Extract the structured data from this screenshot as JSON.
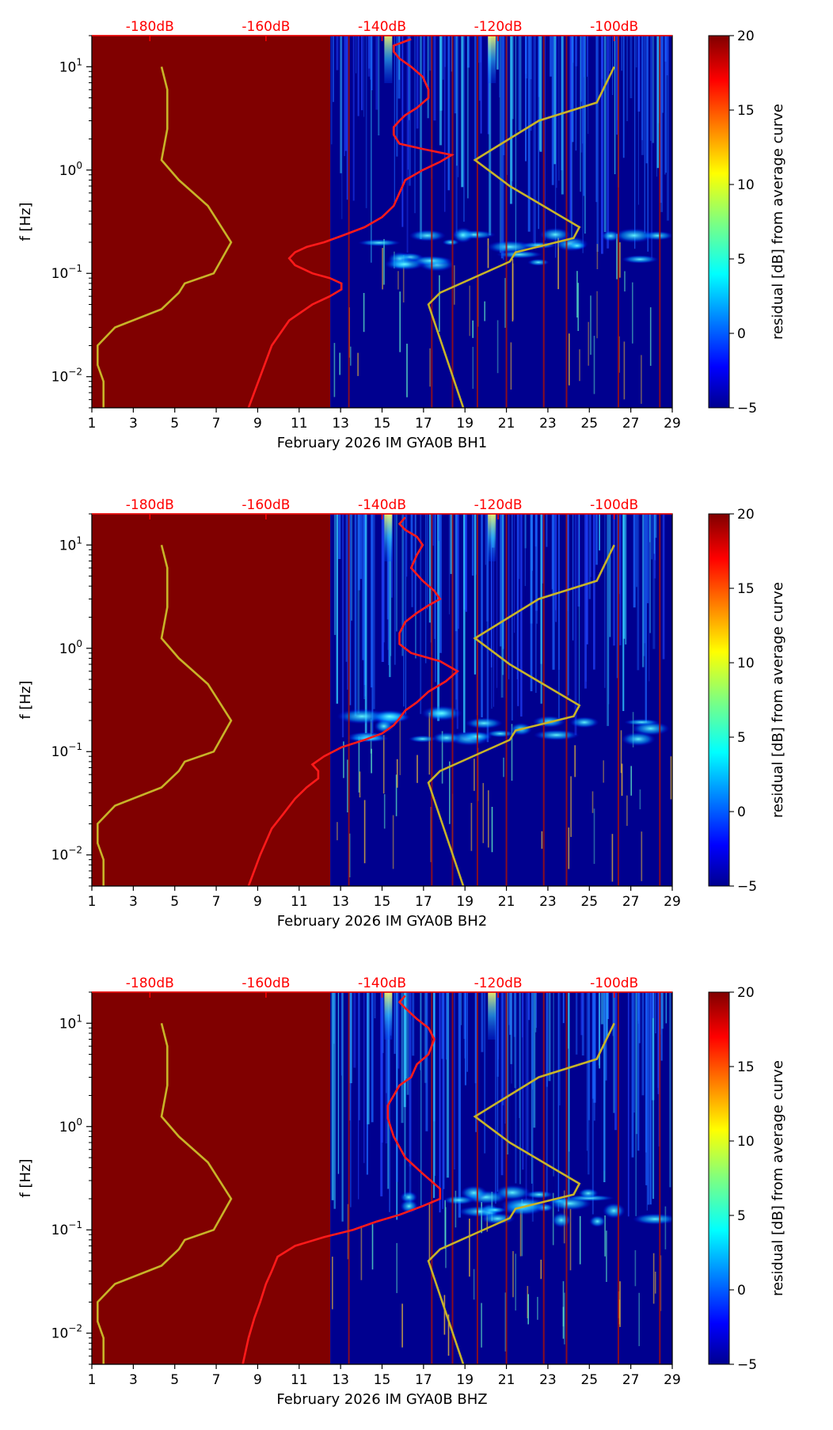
{
  "chart_data": [
    {
      "type": "heatmap",
      "title": "",
      "xlabel": "February 2026 IM GYA0B  BH1",
      "ylabel": "f [Hz]",
      "xlim": [
        1,
        29
      ],
      "xticks": [
        "1",
        "3",
        "5",
        "7",
        "9",
        "11",
        "13",
        "15",
        "17",
        "19",
        "21",
        "23",
        "25",
        "27",
        "29"
      ],
      "yscale": "log",
      "ylim": [
        0.005,
        20
      ],
      "yticks": [
        {
          "v": 0.01,
          "base": "10",
          "exp": "−2"
        },
        {
          "v": 0.1,
          "base": "10",
          "exp": "−1"
        },
        {
          "v": 1,
          "base": "10",
          "exp": "0"
        },
        {
          "v": 10,
          "base": "10",
          "exp": "1"
        }
      ],
      "top_axis": {
        "labels": [
          "-180dB",
          "-160dB",
          "-140dB",
          "-120dB",
          "-100dB"
        ],
        "values": [
          -180,
          -160,
          -140,
          -120,
          -100
        ],
        "range": [
          -190,
          -90
        ]
      },
      "colorbar": {
        "label": "residual [dB] from average curve",
        "range": [
          -5,
          20
        ],
        "ticks": [
          "20",
          "15",
          "10",
          "5",
          "0",
          "−5"
        ],
        "colormap": "jet"
      },
      "no_data_until_day": 12.5,
      "red_curve": {
        "name": "",
        "db": [
          -135,
          -138,
          -138,
          -137,
          -135,
          -133,
          -132,
          -132,
          -134,
          -136,
          -137,
          -138,
          -138,
          -137,
          -133,
          -128,
          -130,
          -133,
          -136,
          -137,
          -138,
          -140,
          -143,
          -147,
          -150,
          -153,
          -155,
          -156,
          -155,
          -152,
          -149,
          -147,
          -147,
          -149,
          -152,
          -156,
          -159,
          -163
        ],
        "f": [
          18.5,
          16,
          14,
          12,
          10,
          8,
          6,
          5,
          4,
          3.4,
          3,
          2.6,
          2.2,
          1.8,
          1.6,
          1.4,
          1.2,
          1.0,
          0.8,
          0.6,
          0.45,
          0.35,
          0.28,
          0.23,
          0.2,
          0.18,
          0.16,
          0.14,
          0.12,
          0.1,
          0.09,
          0.08,
          0.07,
          0.06,
          0.05,
          0.035,
          0.02,
          0.005
        ]
      },
      "yellow_curves": [
        {
          "name": "",
          "db": [
            -178,
            -177,
            -177,
            -178,
            -175,
            -170,
            -166,
            -169,
            -174,
            -175,
            -178,
            -186,
            -189,
            -189,
            -188,
            -188
          ],
          "f": [
            10,
            6,
            2.5,
            1.25,
            0.8,
            0.45,
            0.2,
            0.1,
            0.08,
            0.065,
            0.045,
            0.03,
            0.02,
            0.013,
            0.009,
            0.005
          ]
        },
        {
          "name": "",
          "db": [
            -100,
            -103,
            -113,
            -124,
            -118,
            -110,
            -106,
            -107,
            -117,
            -118,
            -130,
            -132,
            -126
          ],
          "f": [
            10,
            4.5,
            3,
            1.25,
            0.7,
            0.38,
            0.28,
            0.22,
            0.16,
            0.13,
            0.065,
            0.05,
            0.005
          ]
        }
      ]
    },
    {
      "type": "heatmap",
      "title": "",
      "xlabel": "February 2026 IM GYA0B  BH2",
      "ylabel": "f [Hz]",
      "xlim": [
        1,
        29
      ],
      "xticks": [
        "1",
        "3",
        "5",
        "7",
        "9",
        "11",
        "13",
        "15",
        "17",
        "19",
        "21",
        "23",
        "25",
        "27",
        "29"
      ],
      "yscale": "log",
      "ylim": [
        0.005,
        20
      ],
      "yticks": [
        {
          "v": 0.01,
          "base": "10",
          "exp": "−2"
        },
        {
          "v": 0.1,
          "base": "10",
          "exp": "−1"
        },
        {
          "v": 1,
          "base": "10",
          "exp": "0"
        },
        {
          "v": 10,
          "base": "10",
          "exp": "1"
        }
      ],
      "top_axis": {
        "labels": [
          "-180dB",
          "-160dB",
          "-140dB",
          "-120dB",
          "-100dB"
        ],
        "values": [
          -180,
          -160,
          -140,
          -120,
          -100
        ],
        "range": [
          -190,
          -90
        ]
      },
      "colorbar": {
        "label": "residual [dB] from average curve",
        "range": [
          -5,
          20
        ],
        "ticks": [
          "20",
          "15",
          "10",
          "5",
          "0",
          "−5"
        ],
        "colormap": "jet"
      },
      "no_data_until_day": 12.5,
      "red_curve": {
        "name": "",
        "db": [
          -136,
          -137,
          -136,
          -134,
          -133,
          -134,
          -135,
          -133,
          -131,
          -130,
          -132,
          -134,
          -136,
          -137,
          -137,
          -135,
          -130,
          -127,
          -129,
          -132,
          -134,
          -136,
          -137,
          -138,
          -140,
          -143,
          -147,
          -150,
          -152,
          -151,
          -151,
          -153,
          -155,
          -157,
          -159,
          -161,
          -163
        ],
        "f": [
          18.5,
          16,
          14,
          12,
          10,
          8,
          6,
          4.5,
          3.6,
          3,
          2.6,
          2.2,
          1.8,
          1.4,
          1.1,
          0.9,
          0.75,
          0.6,
          0.48,
          0.38,
          0.3,
          0.25,
          0.21,
          0.18,
          0.15,
          0.13,
          0.11,
          0.09,
          0.075,
          0.065,
          0.055,
          0.045,
          0.035,
          0.025,
          0.018,
          0.01,
          0.005
        ]
      },
      "yellow_curves": [
        {
          "name": "",
          "db": [
            -178,
            -177,
            -177,
            -178,
            -175,
            -170,
            -166,
            -169,
            -174,
            -175,
            -178,
            -186,
            -189,
            -189,
            -188,
            -188
          ],
          "f": [
            10,
            6,
            2.5,
            1.25,
            0.8,
            0.45,
            0.2,
            0.1,
            0.08,
            0.065,
            0.045,
            0.03,
            0.02,
            0.013,
            0.009,
            0.005
          ]
        },
        {
          "name": "",
          "db": [
            -100,
            -103,
            -113,
            -124,
            -118,
            -110,
            -106,
            -107,
            -117,
            -118,
            -130,
            -132,
            -126
          ],
          "f": [
            10,
            4.5,
            3,
            1.25,
            0.7,
            0.38,
            0.28,
            0.22,
            0.16,
            0.13,
            0.065,
            0.05,
            0.005
          ]
        }
      ]
    },
    {
      "type": "heatmap",
      "title": "",
      "xlabel": "February 2026 IM GYA0B  BHZ",
      "ylabel": "f [Hz]",
      "xlim": [
        1,
        29
      ],
      "xticks": [
        "1",
        "3",
        "5",
        "7",
        "9",
        "11",
        "13",
        "15",
        "17",
        "19",
        "21",
        "23",
        "25",
        "27",
        "29"
      ],
      "yscale": "log",
      "ylim": [
        0.005,
        20
      ],
      "yticks": [
        {
          "v": 0.01,
          "base": "10",
          "exp": "−2"
        },
        {
          "v": 0.1,
          "base": "10",
          "exp": "−1"
        },
        {
          "v": 1,
          "base": "10",
          "exp": "0"
        },
        {
          "v": 10,
          "base": "10",
          "exp": "1"
        }
      ],
      "top_axis": {
        "labels": [
          "-180dB",
          "-160dB",
          "-140dB",
          "-120dB",
          "-100dB"
        ],
        "values": [
          -180,
          -160,
          -140,
          -120,
          -100
        ],
        "range": [
          -190,
          -90
        ]
      },
      "colorbar": {
        "label": "residual [dB] from average curve",
        "range": [
          -5,
          20
        ],
        "ticks": [
          "20",
          "15",
          "10",
          "5",
          "0",
          "−5"
        ],
        "colormap": "jet"
      },
      "no_data_until_day": 12.5,
      "red_curve": {
        "name": "",
        "db": [
          -136,
          -137,
          -136,
          -134,
          -132,
          -131,
          -132,
          -134,
          -135,
          -137,
          -138,
          -139,
          -139,
          -138,
          -136,
          -133,
          -130,
          -130,
          -133,
          -137,
          -141,
          -145,
          -150,
          -155,
          -158,
          -159,
          -160,
          -161,
          -162,
          -163,
          -164
        ],
        "f": [
          18.5,
          16,
          14,
          11,
          9,
          7,
          5,
          4,
          3,
          2.5,
          2,
          1.6,
          1.2,
          0.8,
          0.5,
          0.35,
          0.25,
          0.2,
          0.17,
          0.14,
          0.12,
          0.1,
          0.085,
          0.07,
          0.055,
          0.04,
          0.03,
          0.02,
          0.014,
          0.009,
          0.005
        ]
      },
      "yellow_curves": [
        {
          "name": "",
          "db": [
            -178,
            -177,
            -177,
            -178,
            -175,
            -170,
            -166,
            -169,
            -174,
            -175,
            -178,
            -186,
            -189,
            -189,
            -188,
            -188
          ],
          "f": [
            10,
            6,
            2.5,
            1.25,
            0.8,
            0.45,
            0.2,
            0.1,
            0.08,
            0.065,
            0.045,
            0.03,
            0.02,
            0.013,
            0.009,
            0.005
          ]
        },
        {
          "name": "",
          "db": [
            -100,
            -103,
            -113,
            -124,
            -118,
            -110,
            -106,
            -107,
            -117,
            -118,
            -130,
            -132,
            -126
          ],
          "f": [
            10,
            4.5,
            3,
            1.25,
            0.7,
            0.38,
            0.28,
            0.22,
            0.16,
            0.13,
            0.065,
            0.05,
            0.005
          ]
        }
      ]
    }
  ],
  "colors": {
    "no_data": "#800000",
    "background": "#00008f",
    "red_curve": "#ff1a1a",
    "yellow_curve": "#c8b428",
    "top_labels": "#ff0000"
  }
}
